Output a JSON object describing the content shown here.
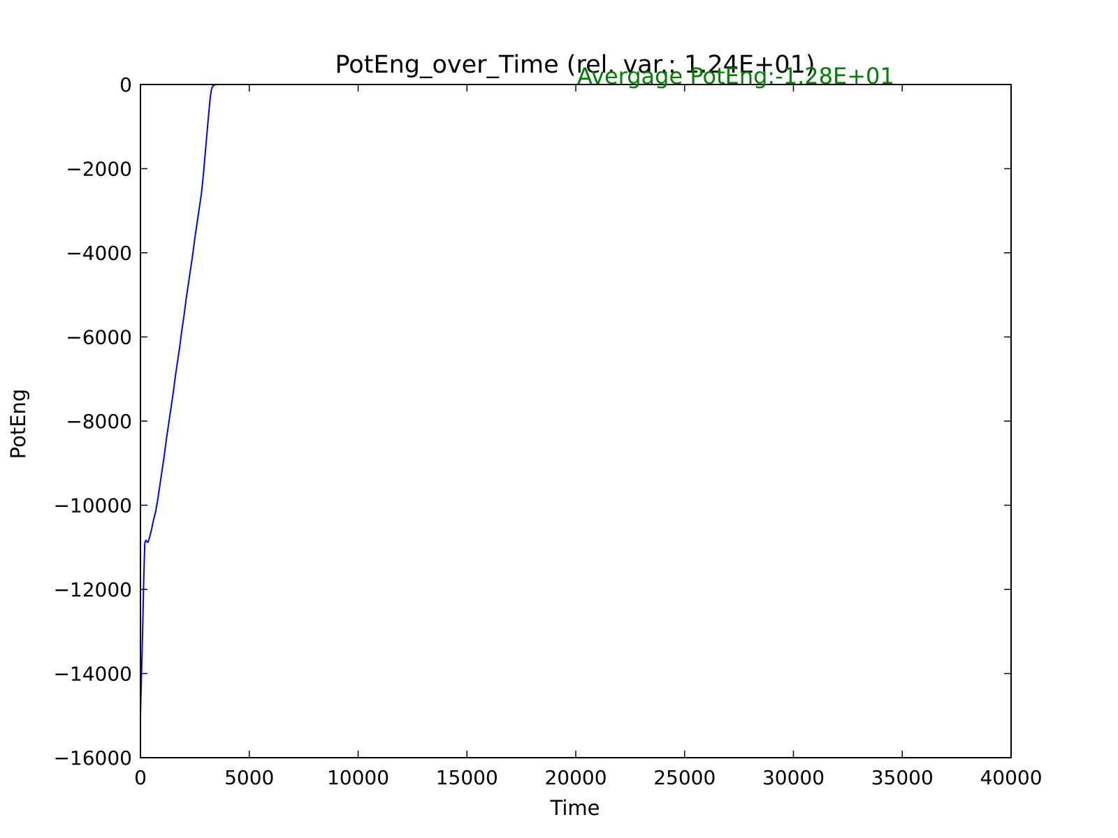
{
  "chart_data": {
    "type": "line",
    "title": "PotEng_over_Time (rel. var.: 1.24E+01)",
    "xlabel": "Time",
    "ylabel": "PotEng",
    "xlim": [
      0,
      40000
    ],
    "ylim": [
      -16000,
      0
    ],
    "xticks": [
      0,
      5000,
      10000,
      15000,
      20000,
      25000,
      30000,
      35000,
      40000
    ],
    "yticks": [
      0,
      -2000,
      -4000,
      -6000,
      -8000,
      -10000,
      -12000,
      -14000,
      -16000
    ],
    "xtick_labels": [
      "0",
      "5000",
      "10000",
      "15000",
      "20000",
      "25000",
      "30000",
      "35000",
      "40000"
    ],
    "ytick_labels": [
      "0",
      "−2000",
      "−4000",
      "−6000",
      "−8000",
      "−10000",
      "−12000",
      "−14000",
      "−16000"
    ],
    "grid": false,
    "annotation": {
      "text": "Avergage PotEng:-1.28E+01",
      "color": "#008000"
    },
    "series": [
      {
        "color": "#0000ff",
        "x": [
          0,
          50,
          100,
          150,
          200,
          250,
          300,
          350,
          400,
          500,
          600,
          700,
          800,
          900,
          1000,
          1100,
          1200,
          1300,
          1400,
          1500,
          1600,
          1700,
          1800,
          1900,
          2000,
          2100,
          2200,
          2300,
          2400,
          2500,
          2600,
          2700,
          2800,
          2900,
          3000,
          3100,
          3200,
          3250,
          3300,
          3350,
          3400,
          3450,
          3500,
          3550,
          3600,
          4000,
          6000,
          8000,
          10000,
          15000,
          20000,
          25000,
          30000,
          35000,
          40000
        ],
        "y": [
          -15000,
          -14000,
          -13000,
          -11800,
          -10900,
          -10830,
          -10870,
          -10880,
          -10800,
          -10600,
          -10350,
          -10150,
          -9850,
          -9500,
          -9150,
          -8800,
          -8400,
          -8050,
          -7700,
          -7350,
          -6950,
          -6600,
          -6250,
          -5850,
          -5500,
          -5100,
          -4750,
          -4400,
          -4050,
          -3650,
          -3300,
          -2950,
          -2600,
          -2100,
          -1500,
          -900,
          -350,
          -150,
          -60,
          -25,
          -10,
          -5,
          -2,
          -1,
          0,
          0,
          0,
          0,
          0,
          0,
          0,
          0,
          0,
          0,
          0
        ]
      }
    ]
  }
}
